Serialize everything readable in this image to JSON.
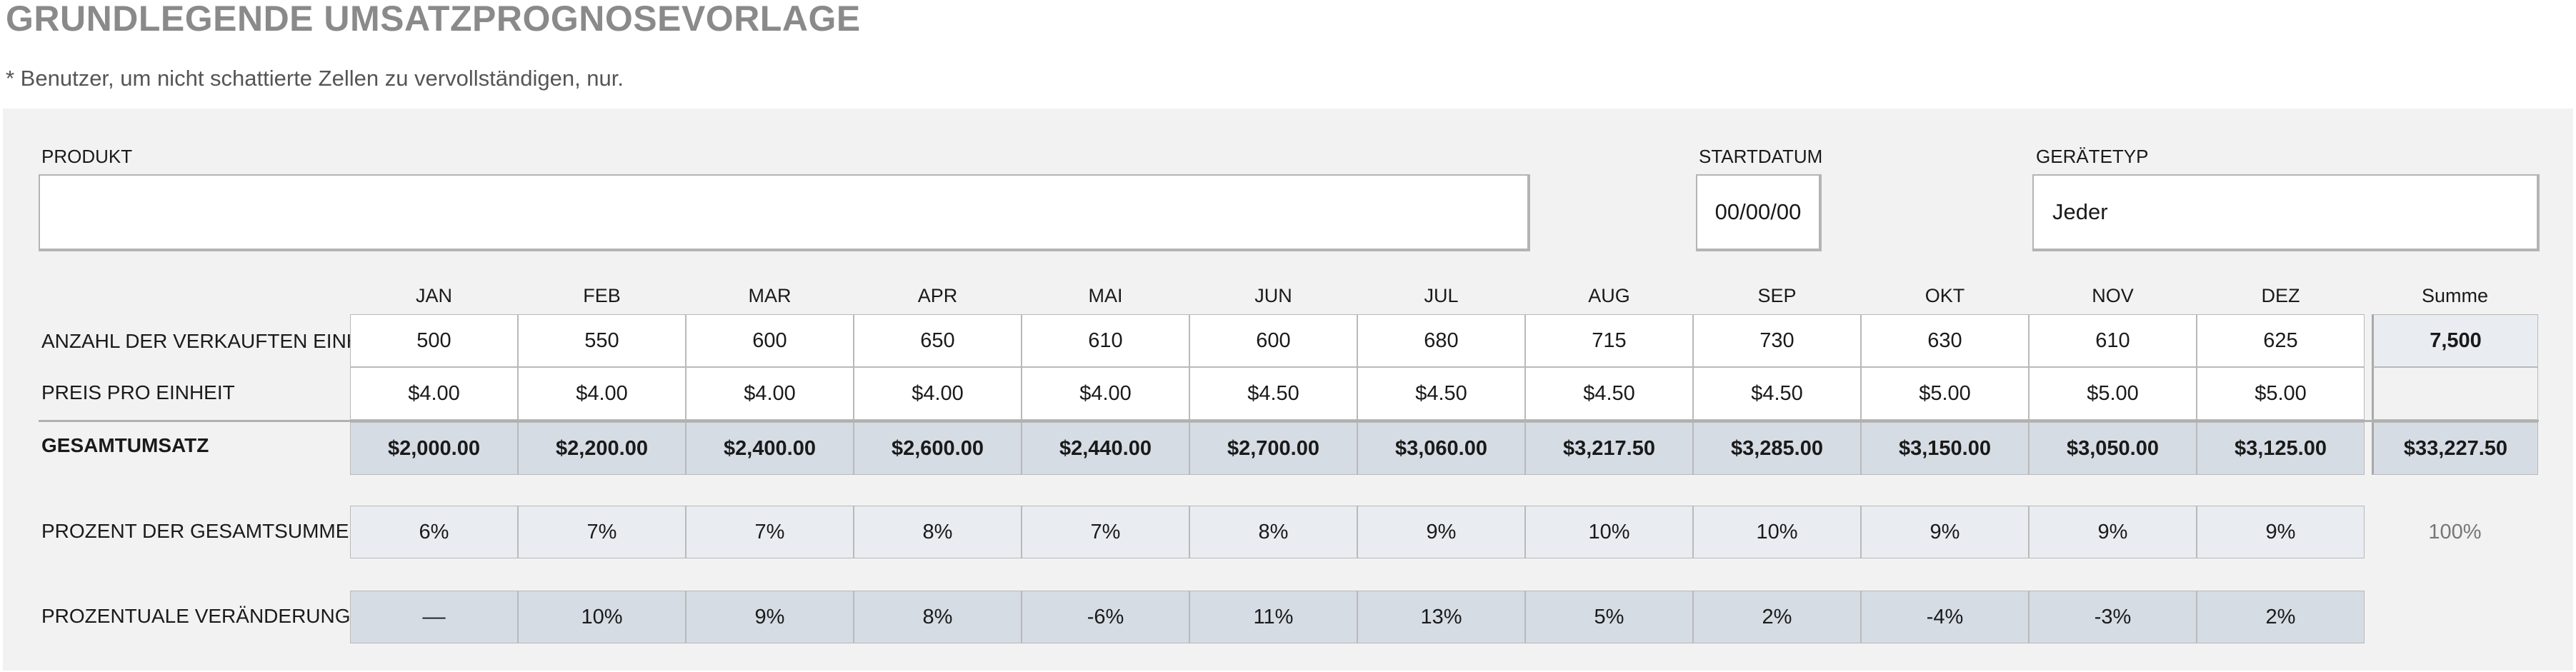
{
  "title": "GRUNDLEGENDE UMSATZPROGNOSEVORLAGE",
  "note": "* Benutzer, um nicht schattierte Zellen zu vervollständigen, nur.",
  "fields": {
    "product_label": "PRODUKT",
    "product_value": "",
    "start_date_label": "STARTDATUM",
    "start_date_value": "00/00/00",
    "device_type_label": "GERÄTETYP",
    "device_type_value": "Jeder"
  },
  "months": [
    "JAN",
    "FEB",
    "MAR",
    "APR",
    "MAI",
    "JUN",
    "JUL",
    "AUG",
    "SEP",
    "OKT",
    "NOV",
    "DEZ"
  ],
  "total_header": "Summe",
  "rows": {
    "units": {
      "label": "ANZAHL DER VERKAUFTEN EINHEITEN",
      "values": [
        "500",
        "550",
        "600",
        "650",
        "610",
        "600",
        "680",
        "715",
        "730",
        "630",
        "610",
        "625"
      ],
      "total": "7,500"
    },
    "price": {
      "label": "PREIS PRO EINHEIT",
      "values": [
        "$4.00",
        "$4.00",
        "$4.00",
        "$4.00",
        "$4.00",
        "$4.50",
        "$4.50",
        "$4.50",
        "$4.50",
        "$5.00",
        "$5.00",
        "$5.00"
      ],
      "total": ""
    },
    "revenue": {
      "label": "GESAMTUMSATZ",
      "values": [
        "$2,000.00",
        "$2,200.00",
        "$2,400.00",
        "$2,600.00",
        "$2,440.00",
        "$2,700.00",
        "$3,060.00",
        "$3,217.50",
        "$3,285.00",
        "$3,150.00",
        "$3,050.00",
        "$3,125.00"
      ],
      "total": "$33,227.50"
    },
    "percent_total": {
      "label": "PROZENT DER GESAMTSUMME",
      "values": [
        "6%",
        "7%",
        "7%",
        "8%",
        "7%",
        "8%",
        "9%",
        "10%",
        "10%",
        "9%",
        "9%",
        "9%"
      ],
      "total": "100%"
    },
    "percent_change": {
      "label": "PROZENTUALE VERÄNDERUNG",
      "values": [
        "––",
        "10%",
        "9%",
        "8%",
        "-6%",
        "11%",
        "13%",
        "5%",
        "2%",
        "-4%",
        "-3%",
        "2%"
      ]
    }
  },
  "colors": {
    "panel": "#f2f2f2",
    "shaded_dark": "#d6dce4",
    "shaded_light": "#e9edf2",
    "title": "#8a8a8a"
  }
}
